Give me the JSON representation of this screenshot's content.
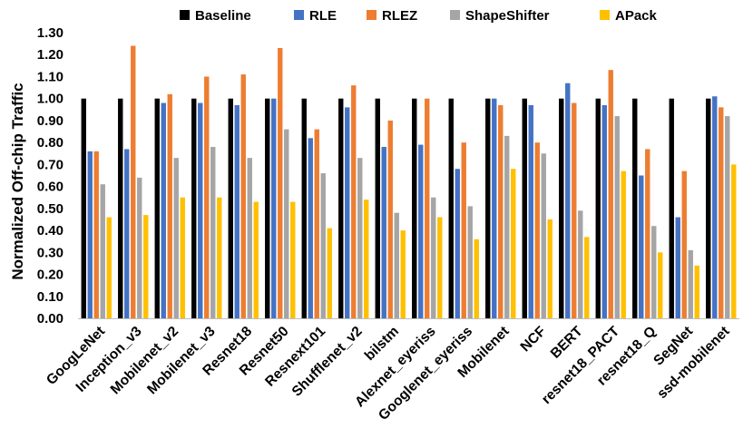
{
  "chart_data": {
    "type": "bar",
    "title": "",
    "xlabel": "",
    "ylabel": "Normalized Off-chip Traffic",
    "ylim": [
      0,
      1.3
    ],
    "yticks": [
      "0.00",
      "0.10",
      "0.20",
      "0.30",
      "0.40",
      "0.50",
      "0.60",
      "0.70",
      "0.80",
      "0.90",
      "1.00",
      "1.10",
      "1.20",
      "1.30"
    ],
    "grid": false,
    "legend_position": "top",
    "categories": [
      "GoogLeNet",
      "Inception_v3",
      "Mobilenet_v2",
      "Mobilenet_v3",
      "Resnet18",
      "Resnet50",
      "Resnext101",
      "Shufflenet_v2",
      "bilstm",
      "Alexnet_eyeriss",
      "Googlenet_eyeriss",
      "Mobilenet",
      "NCF",
      "BERT",
      "resnet18_PACT",
      "resnet18_Q",
      "SegNet",
      "ssd-mobilenet"
    ],
    "series": [
      {
        "name": "Baseline",
        "color": "#000000",
        "values": [
          1.0,
          1.0,
          1.0,
          1.0,
          1.0,
          1.0,
          1.0,
          1.0,
          1.0,
          1.0,
          1.0,
          1.0,
          1.0,
          1.0,
          1.0,
          1.0,
          1.0,
          1.0
        ]
      },
      {
        "name": "RLE",
        "color": "#4472C4",
        "values": [
          0.76,
          0.77,
          0.98,
          0.98,
          0.97,
          1.0,
          0.82,
          0.96,
          0.78,
          0.79,
          0.68,
          1.0,
          0.97,
          1.07,
          0.97,
          0.65,
          0.46,
          1.01
        ]
      },
      {
        "name": "RLEZ",
        "color": "#ED7D31",
        "values": [
          0.76,
          1.24,
          1.02,
          1.1,
          1.11,
          1.23,
          0.86,
          1.06,
          0.9,
          1.0,
          0.8,
          0.97,
          0.8,
          0.98,
          1.13,
          0.77,
          0.67,
          0.96
        ]
      },
      {
        "name": "ShapeShifter",
        "color": "#A5A5A5",
        "values": [
          0.61,
          0.64,
          0.73,
          0.78,
          0.73,
          0.86,
          0.66,
          0.73,
          0.48,
          0.55,
          0.51,
          0.83,
          0.75,
          0.49,
          0.92,
          0.42,
          0.31,
          0.92
        ]
      },
      {
        "name": "APack",
        "color": "#FFC000",
        "values": [
          0.46,
          0.47,
          0.55,
          0.55,
          0.53,
          0.53,
          0.41,
          0.54,
          0.4,
          0.46,
          0.36,
          0.68,
          0.45,
          0.37,
          0.67,
          0.3,
          0.24,
          0.7
        ]
      }
    ]
  }
}
